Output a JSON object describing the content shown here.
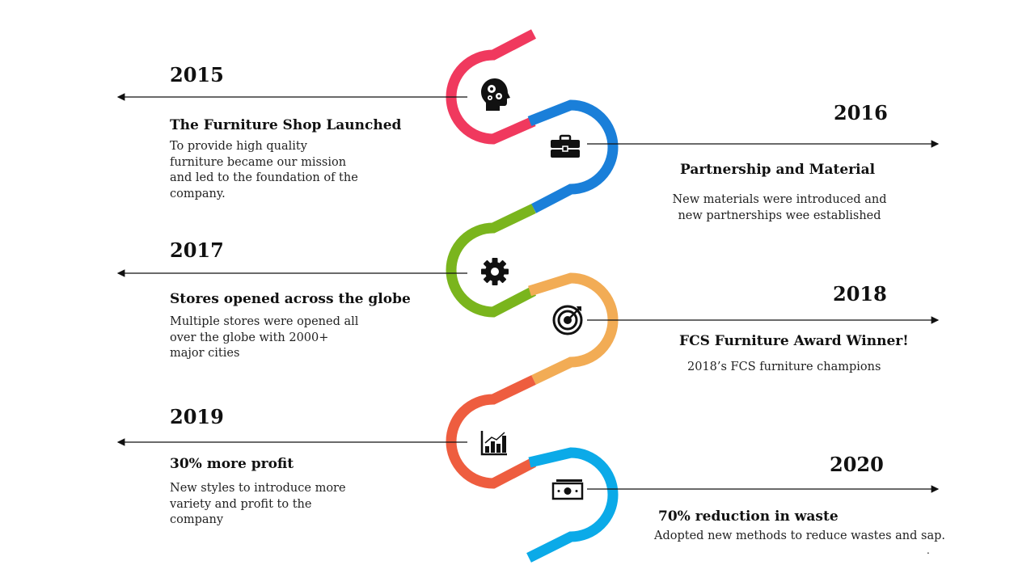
{
  "milestones": [
    {
      "year": "2015",
      "title": "The Furniture Shop Launched",
      "description": "To provide high quality furniture became our mission and led to the foundation of the company.",
      "icon": "head-gears-icon",
      "color": "#F0395E"
    },
    {
      "year": "2016",
      "title": "Partnership and Material",
      "description": "New materials were introduced and new partnerships wee established",
      "icon": "briefcase-icon",
      "color": "#1A7FD9"
    },
    {
      "year": "2017",
      "title": "Stores opened across the globe",
      "description": "Multiple stores were opened all over the globe with 2000+ major cities",
      "icon": "gear-icon",
      "color": "#7AB51D"
    },
    {
      "year": "2018",
      "title": "FCS Furniture Award Winner!",
      "description": "2018’s FCS furniture champions",
      "icon": "target-icon",
      "color": "#F2AC55"
    },
    {
      "year": "2019",
      "title": "30% more profit",
      "description": "New styles to introduce more variety and profit to the company",
      "icon": "bar-chart-icon",
      "color": "#EE5D3F"
    },
    {
      "year": "2020",
      "title": "70% reduction in waste",
      "description": "Adopted new methods to reduce wastes and sap.",
      "icon": "money-icon",
      "color": "#0BAAE8"
    }
  ],
  "footer_mark": "."
}
